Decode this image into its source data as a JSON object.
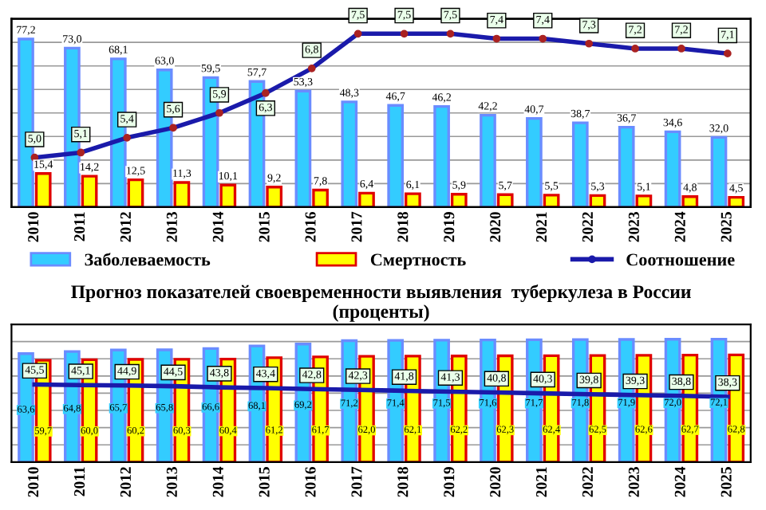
{
  "chart_data": [
    {
      "type": "bar",
      "categories": [
        "2010",
        "2011",
        "2012",
        "2013",
        "2014",
        "2015",
        "2016",
        "2017",
        "2018",
        "2019",
        "2020",
        "2021",
        "2022",
        "2023",
        "2024",
        "2025"
      ],
      "series": [
        {
          "name": "Заболеваемость",
          "color": "#33ccff",
          "values": [
            77.2,
            73.0,
            68.1,
            63.0,
            59.5,
            57.7,
            53.3,
            48.3,
            46.7,
            46.2,
            42.2,
            40.7,
            38.7,
            36.7,
            34.6,
            32.0
          ],
          "value_labels": [
            "77,2",
            "73,0",
            "68,1",
            "63,0",
            "59,5",
            "57,7",
            "53,3",
            "48,3",
            "46,7",
            "46,2",
            "42,2",
            "40,7",
            "38,7",
            "36,7",
            "34,6",
            "32,0"
          ]
        },
        {
          "name": "Смертность",
          "color": "#ffff00",
          "values": [
            15.4,
            14.2,
            12.5,
            11.3,
            10.1,
            9.2,
            7.8,
            6.4,
            6.1,
            5.9,
            5.7,
            5.5,
            5.3,
            5.1,
            4.8,
            4.5
          ],
          "value_labels": [
            "15,4",
            "14,2",
            "12,5",
            "11,3",
            "10,1",
            "9,2",
            "7,8",
            "6,4",
            "6,1",
            "5,9",
            "5,7",
            "5,5",
            "5,3",
            "5,1",
            "4,8",
            "4,5"
          ]
        },
        {
          "name": "Соотношение",
          "type": "line",
          "axis": "y2",
          "color": "#1a1aaa",
          "values": [
            5.0,
            5.1,
            5.4,
            5.6,
            5.9,
            6.3,
            6.8,
            7.5,
            7.5,
            7.5,
            7.4,
            7.4,
            7.3,
            7.2,
            7.2,
            7.1
          ],
          "value_labels": [
            "5,0",
            "5,1",
            "5,4",
            "5,6",
            "5,9",
            "6,3",
            "6,8",
            "7,5",
            "7,5",
            "7,5",
            "7,4",
            "7,4",
            "7,3",
            "7,2",
            "7,2",
            "7,1"
          ]
        }
      ],
      "marker": "circle",
      "legend": "bottom",
      "grid": "y",
      "tick_labels": "x"
    },
    {
      "type": "bar",
      "title": "Прогноз показателей своевременности выявления  туберкулеза в России",
      "subtitle": "(проценты)",
      "categories": [
        "2010",
        "2011",
        "2012",
        "2013",
        "2014",
        "2015",
        "2016",
        "2017",
        "2018",
        "2019",
        "2020",
        "2021",
        "2022",
        "2023",
        "2024",
        "2025"
      ],
      "series": [
        {
          "color": "#33ccff",
          "values": [
            63.6,
            64.8,
            65.7,
            65.8,
            66.6,
            68.1,
            69.2,
            71.2,
            71.4,
            71.5,
            71.6,
            71.7,
            71.8,
            71.9,
            72.0,
            72.1
          ],
          "value_labels": [
            "63,6",
            "64,8",
            "65,7",
            "65,8",
            "66,6",
            "68,1",
            "69,2",
            "71,2",
            "71,4",
            "71,5",
            "71,6",
            "71,7",
            "71,8",
            "71,9",
            "72,0",
            "72,1"
          ]
        },
        {
          "color": "#ffff00",
          "values": [
            59.7,
            60.0,
            60.2,
            60.3,
            60.4,
            61.2,
            61.7,
            62.0,
            62.1,
            62.2,
            62.3,
            62.4,
            62.5,
            62.6,
            62.7,
            62.8
          ],
          "value_labels": [
            "59,7",
            "60,0",
            "60,2",
            "60,3",
            "60,4",
            "61,2",
            "61,7",
            "62,0",
            "62,1",
            "62,2",
            "62,3",
            "62,4",
            "62,5",
            "62,6",
            "62,7",
            "62,8"
          ]
        },
        {
          "type": "line",
          "color": "#1a1aaa",
          "values": [
            45.5,
            45.1,
            44.9,
            44.5,
            43.8,
            43.4,
            42.8,
            42.3,
            41.8,
            41.3,
            40.8,
            40.3,
            39.8,
            39.3,
            38.8,
            38.3
          ],
          "value_labels": [
            "45,5",
            "45,1",
            "44,9",
            "44,5",
            "43,8",
            "43,4",
            "42,8",
            "42,3",
            "41,8",
            "41,3",
            "40,8",
            "40,3",
            "39,8",
            "39,3",
            "38,8",
            "38,3"
          ]
        }
      ],
      "grid": "y",
      "tick_labels": "x"
    }
  ]
}
